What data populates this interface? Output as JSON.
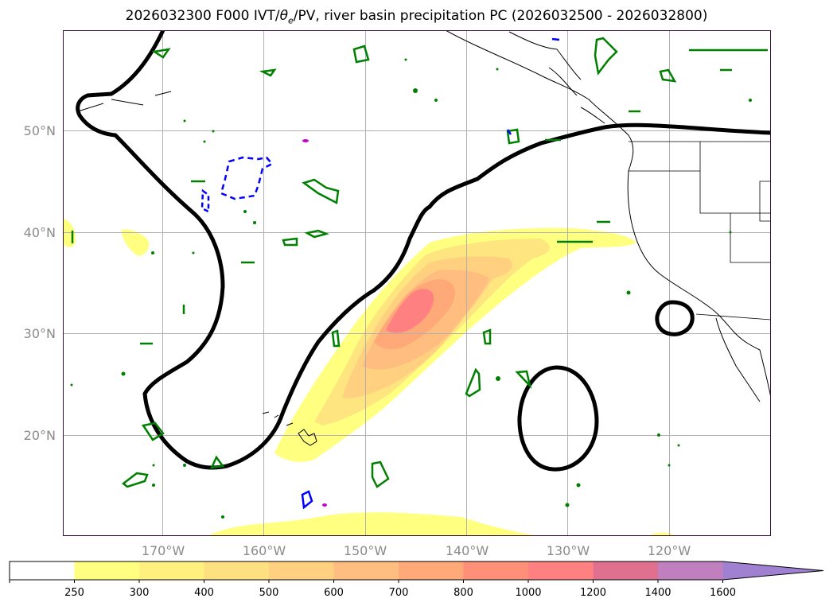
{
  "title": {
    "prefix": "2026032300 F000 IVT/",
    "theta": "θ",
    "theta_sub": "e",
    "suffix": "/PV, river basin precipitation PC (2026032500 - 2026032800)"
  },
  "lat_labels": [
    "50°N",
    "40°N",
    "30°N",
    "20°N"
  ],
  "lon_labels": [
    "170°W",
    "160°W",
    "150°W",
    "140°W",
    "130°W",
    "120°W"
  ],
  "colorbar": {
    "ticks": [
      "250",
      "300",
      "400",
      "500",
      "600",
      "700",
      "800",
      "1000",
      "1200",
      "1400",
      "1600"
    ],
    "colors": [
      "#ffffff",
      "#ffff80",
      "#fff080",
      "#ffe080",
      "#ffd080",
      "#ffbe80",
      "#ffa878",
      "#ff9078",
      "#ff8080",
      "#e07090",
      "#c080c0",
      "#a080d0"
    ]
  },
  "colors": {
    "pv_contour": "#000000",
    "theta_contour_positive": "#008000",
    "theta_contour_negative": "#0000ff",
    "precip_marker": "#cc00cc",
    "grid": "#b0b0b0",
    "frame": "#3a1040"
  }
}
